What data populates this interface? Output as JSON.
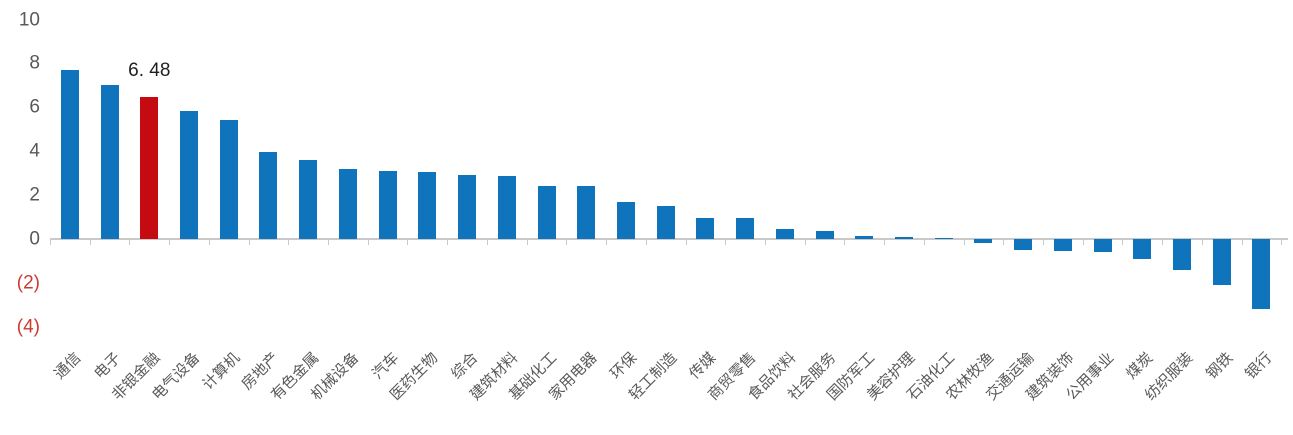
{
  "chart_data": {
    "type": "bar",
    "title": "",
    "xlabel": "",
    "ylabel": "",
    "grid": false,
    "legend": false,
    "categories": [
      "通信",
      "电子",
      "非银金融",
      "电气设备",
      "计算机",
      "房地产",
      "有色金属",
      "机械设备",
      "汽车",
      "医药生物",
      "综合",
      "建筑材料",
      "基础化工",
      "家用电器",
      "环保",
      "轻工制造",
      "传媒",
      "商贸零售",
      "食品饮料",
      "社会服务",
      "国防军工",
      "美容护理",
      "石油化工",
      "农林牧渔",
      "交通运输",
      "建筑装饰",
      "公用事业",
      "煤炭",
      "纺织服装",
      "钢铁",
      "银行"
    ],
    "values": [
      7.7,
      7.0,
      6.48,
      5.85,
      5.4,
      3.95,
      3.6,
      3.2,
      3.1,
      3.05,
      2.9,
      2.85,
      2.4,
      2.4,
      1.7,
      1.5,
      0.95,
      0.95,
      0.45,
      0.35,
      0.15,
      0.1,
      0.02,
      -0.2,
      -0.5,
      -0.55,
      -0.6,
      -0.9,
      -1.4,
      -2.1,
      -3.2
    ],
    "bar_color": "#1074bd",
    "highlight": {
      "index": 2,
      "category": "非银金融",
      "value": 6.48,
      "data_label": "6. 48",
      "color": "#c50a11"
    },
    "y_axis": {
      "range": [
        -4,
        10
      ],
      "ticks": [
        {
          "value": 10,
          "label": "10"
        },
        {
          "value": 8,
          "label": "8"
        },
        {
          "value": 6,
          "label": "6"
        },
        {
          "value": 4,
          "label": "4"
        },
        {
          "value": 2,
          "label": "2"
        },
        {
          "value": 0,
          "label": "0"
        },
        {
          "value": -2,
          "label": "(2)"
        },
        {
          "value": -4,
          "label": "(4)"
        }
      ],
      "tick_label_color": "#595959",
      "negative_tick_label_color": "#cc3b33"
    },
    "x_axis": {
      "label_color": "#5a5a5a",
      "axis_color": "#c9c9c9"
    }
  }
}
